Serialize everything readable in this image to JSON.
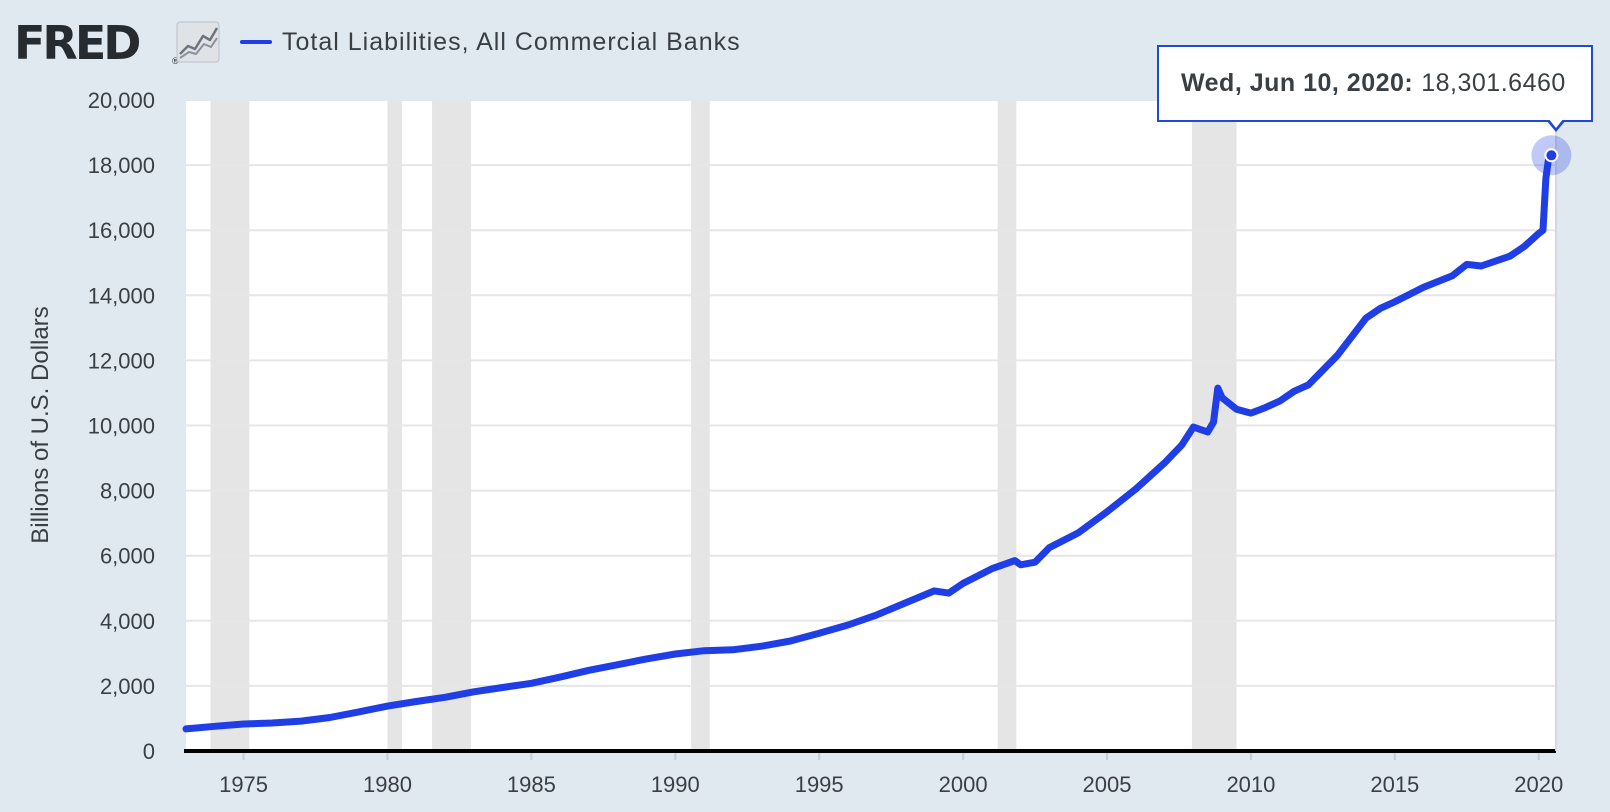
{
  "header": {
    "logo": "FRED",
    "logo_reg": "®",
    "legend_label": "Total Liabilities, All Commercial Banks",
    "legend_color": "#1f3ee6"
  },
  "tooltip": {
    "date": "Wed, Jun 10, 2020:",
    "value": "18,301.6460"
  },
  "colors": {
    "page_background": "#e1e9f0",
    "plot_background": "#ffffff",
    "recession_band": "#e5e5e5",
    "series": "#1f3ee6",
    "gridline": "#e6e6e6",
    "axis_line": "#000000",
    "text": "#3a3f44"
  },
  "chart_data": {
    "type": "line",
    "title": "",
    "xlabel": "",
    "ylabel": "Billions of U.S. Dollars",
    "xlim": [
      1973.0,
      2020.6
    ],
    "ylim": [
      0,
      20000
    ],
    "x_ticks": [
      1975,
      1980,
      1985,
      1990,
      1995,
      2000,
      2005,
      2010,
      2015,
      2020
    ],
    "y_ticks": [
      0,
      2000,
      4000,
      6000,
      8000,
      10000,
      12000,
      14000,
      16000,
      18000,
      20000
    ],
    "y_tick_labels": [
      "0",
      "2,000",
      "4,000",
      "6,000",
      "8,000",
      "10,000",
      "12,000",
      "14,000",
      "16,000",
      "18,000",
      "20,000"
    ],
    "grid": true,
    "legend_position": "top",
    "recessions": [
      [
        1973.85,
        1975.2
      ],
      [
        1980.0,
        1980.5
      ],
      [
        1981.55,
        1982.9
      ],
      [
        1990.55,
        1991.2
      ],
      [
        2001.2,
        2001.85
      ],
      [
        2007.95,
        2009.5
      ]
    ],
    "series": [
      {
        "name": "Total Liabilities, All Commercial Banks",
        "x": [
          1973.0,
          1974.0,
          1975.0,
          1976.0,
          1977.0,
          1978.0,
          1979.0,
          1980.0,
          1981.0,
          1982.0,
          1983.0,
          1984.0,
          1985.0,
          1986.0,
          1987.0,
          1988.0,
          1989.0,
          1990.0,
          1991.0,
          1992.0,
          1993.0,
          1994.0,
          1995.0,
          1996.0,
          1997.0,
          1998.0,
          1999.0,
          1999.5,
          2000.0,
          2001.0,
          2001.8,
          2002.0,
          2002.5,
          2003.0,
          2004.0,
          2005.0,
          2006.0,
          2007.0,
          2007.6,
          2008.0,
          2008.5,
          2008.7,
          2008.85,
          2009.0,
          2009.5,
          2010.0,
          2010.5,
          2011.0,
          2011.5,
          2012.0,
          2013.0,
          2014.0,
          2014.5,
          2015.0,
          2016.0,
          2017.0,
          2017.5,
          2018.0,
          2019.0,
          2019.5,
          2020.0,
          2020.15,
          2020.25,
          2020.35,
          2020.44
        ],
        "values": [
          680,
          760,
          830,
          860,
          920,
          1030,
          1200,
          1380,
          1520,
          1650,
          1820,
          1950,
          2080,
          2270,
          2480,
          2650,
          2830,
          2980,
          3080,
          3110,
          3220,
          3380,
          3620,
          3870,
          4180,
          4550,
          4920,
          4850,
          5150,
          5600,
          5850,
          5720,
          5800,
          6250,
          6700,
          7350,
          8050,
          8850,
          9400,
          9950,
          9800,
          10100,
          11150,
          10850,
          10500,
          10380,
          10550,
          10750,
          11050,
          11250,
          12150,
          13300,
          13600,
          13800,
          14250,
          14600,
          14950,
          14900,
          15200,
          15500,
          15900,
          16000,
          17600,
          18250,
          18301.646
        ]
      }
    ]
  }
}
